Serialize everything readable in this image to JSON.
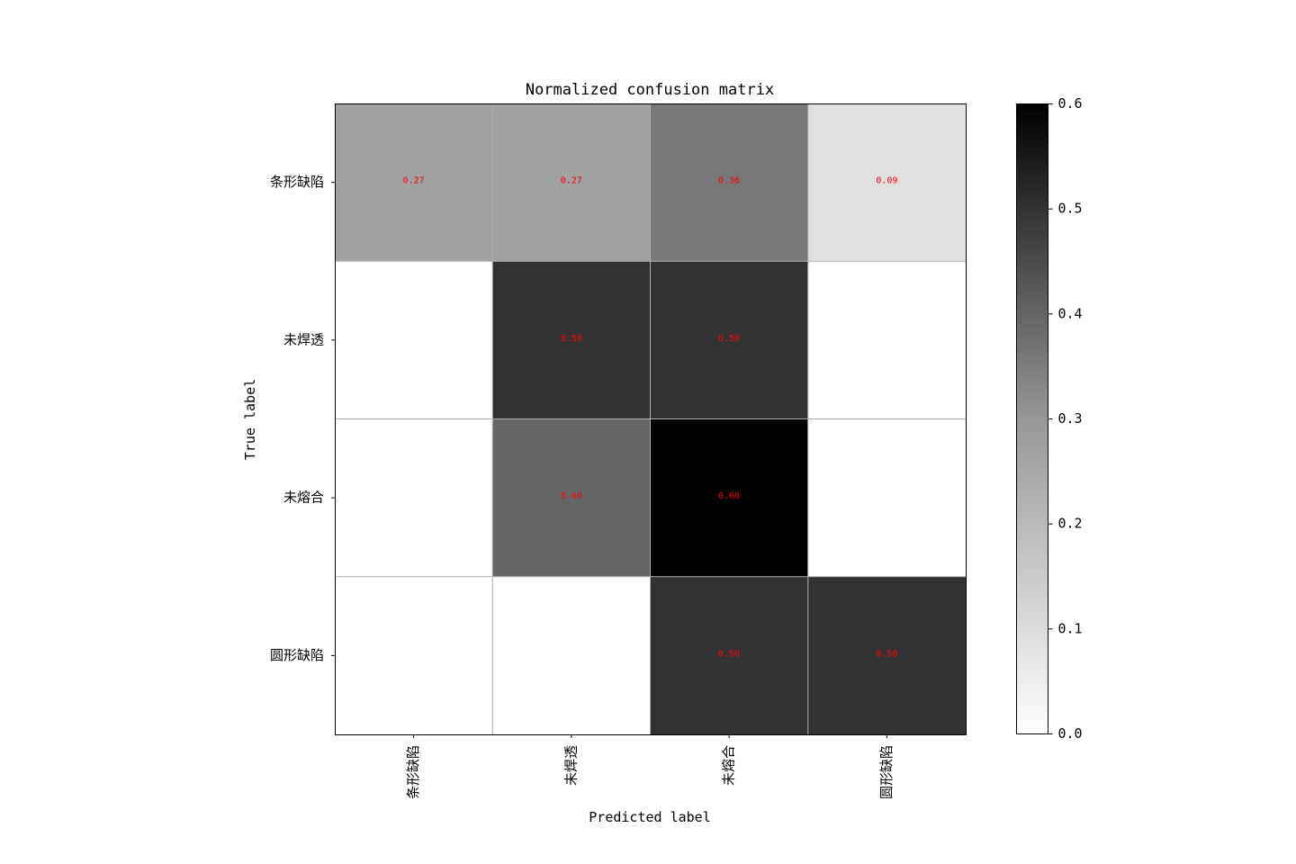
{
  "chart_data": {
    "type": "heatmap",
    "title": "Normalized confusion matrix",
    "xlabel": "Predicted label",
    "ylabel": "True label",
    "x_categories": [
      "条形缺陷",
      "未焊透",
      "未熔合",
      "圆形缺陷"
    ],
    "y_categories": [
      "条形缺陷",
      "未焊透",
      "未熔合",
      "圆形缺陷"
    ],
    "values": [
      [
        0.27,
        0.27,
        0.36,
        0.09
      ],
      [
        0.0,
        0.5,
        0.5,
        0.0
      ],
      [
        0.0,
        0.4,
        0.6,
        0.0
      ],
      [
        0.0,
        0.0,
        0.5,
        0.5
      ]
    ],
    "cell_text": [
      [
        "0.27",
        "0.27",
        "0.36",
        "0.09"
      ],
      [
        "",
        "0.50",
        "0.50",
        ""
      ],
      [
        "",
        "0.40",
        "0.60",
        ""
      ],
      [
        "",
        "",
        "0.50",
        "0.50"
      ]
    ],
    "colormap": "Greys",
    "cell_text_color": "#ff0000",
    "grid": true,
    "grid_color": "#b0b0b0",
    "colorbar": {
      "range": [
        0.0,
        0.6
      ],
      "ticks": [
        "0.0",
        "0.1",
        "0.2",
        "0.3",
        "0.4",
        "0.5",
        "0.6"
      ],
      "placement": "right"
    }
  }
}
